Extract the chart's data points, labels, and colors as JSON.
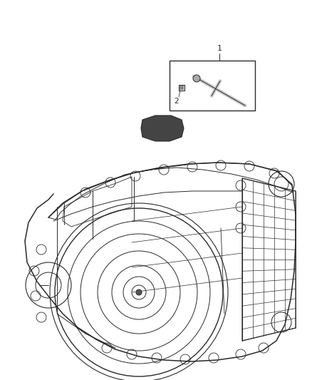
{
  "bg_color": "#ffffff",
  "line_color": "#2a2a2a",
  "fig_width": 4.38,
  "fig_height": 5.33,
  "dpi": 100,
  "label1": "1",
  "label2": "2",
  "lw_main": 0.9,
  "lw_thin": 0.5,
  "lw_grid": 0.4
}
